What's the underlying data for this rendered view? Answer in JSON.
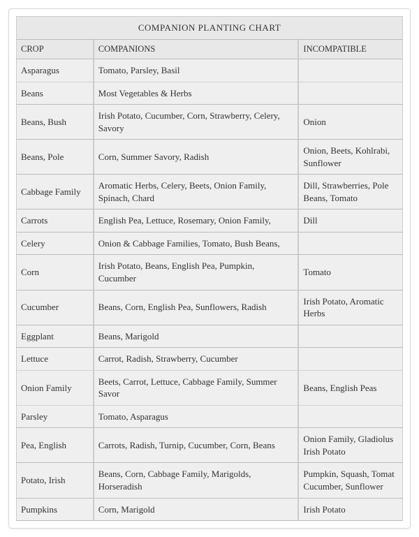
{
  "chart": {
    "title": "COMPANION PLANTING CHART",
    "columns": [
      "CROP",
      "COMPANIONS",
      "INCOMPATIBLE"
    ],
    "col_widths_pct": [
      20,
      53,
      27
    ],
    "background_color": "#efefef",
    "header_background": "#e8e8e8",
    "border_color": "#cccccc",
    "divider_color": "#bbbbbb",
    "thin_divider_color": "#d2d2d2",
    "font_family": "Georgia",
    "font_size_pt": 10,
    "rows": [
      {
        "crop": "Asparagus",
        "companions": "Tomato, Parsley, Basil",
        "incompatible": "",
        "thin_sep": true
      },
      {
        "crop": "Beans",
        "companions": "Most Vegetables & Herbs",
        "incompatible": "",
        "thin_sep": false
      },
      {
        "crop": "Beans, Bush",
        "companions": "Irish Potato, Cucumber, Corn, Strawberry, Celery, Savory",
        "incompatible": "Onion",
        "thin_sep": false
      },
      {
        "crop": "Beans, Pole",
        "companions": "Corn, Summer Savory, Radish",
        "incompatible": "Onion, Beets, Kohlrabi, Sunflower",
        "thin_sep": false
      },
      {
        "crop": "Cabbage Family",
        "companions": "Aromatic Herbs, Celery, Beets, Onion Family, Spinach, Chard",
        "incompatible": "Dill, Strawberries, Pole Beans, Tomato",
        "thin_sep": false
      },
      {
        "crop": "Carrots",
        "companions": "English Pea, Lettuce, Rosemary, Onion Family,",
        "incompatible": "Dill",
        "thin_sep": false
      },
      {
        "crop": "Celery",
        "companions": "Onion & Cabbage Families, Tomato, Bush Beans,",
        "incompatible": "",
        "thin_sep": false
      },
      {
        "crop": "Corn",
        "companions": "Irish Potato, Beans, English Pea, Pumpkin, Cucumber",
        "incompatible": "Tomato",
        "thin_sep": false
      },
      {
        "crop": "Cucumber",
        "companions": "Beans, Corn, English Pea, Sunflowers, Radish",
        "incompatible": "Irish Potato, Aromatic Herbs",
        "thin_sep": false
      },
      {
        "crop": "Eggplant",
        "companions": "Beans, Marigold",
        "incompatible": "",
        "thin_sep": false
      },
      {
        "crop": "Lettuce",
        "companions": "Carrot, Radish, Strawberry, Cucumber",
        "incompatible": "",
        "thin_sep": true
      },
      {
        "crop": "Onion Family",
        "companions": "Beets, Carrot, Lettuce, Cabbage Family, Summer Savor",
        "incompatible": "Beans, English Peas",
        "thin_sep": true
      },
      {
        "crop": "Parsley",
        "companions": "Tomato, Asparagus",
        "incompatible": "",
        "thin_sep": false
      },
      {
        "crop": "Pea, English",
        "companions": "Carrots, Radish, Turnip, Cucumber, Corn, Beans",
        "incompatible": "Onion Family, Gladiolus Irish Potato",
        "thin_sep": false
      },
      {
        "crop": "Potato, Irish",
        "companions": "Beans, Corn, Cabbage Family, Marigolds, Horseradish",
        "incompatible": "Pumpkin, Squash, Tomat Cucumber, Sunflower",
        "thin_sep": false
      },
      {
        "crop": "Pumpkins",
        "companions": "Corn, Marigold",
        "incompatible": "Irish Potato",
        "thin_sep": false
      }
    ]
  }
}
